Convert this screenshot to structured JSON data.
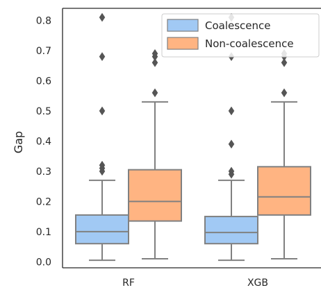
{
  "chart_data": {
    "type": "box",
    "ylabel": "Gap",
    "xlabel": "",
    "ylim": [
      -0.02,
      0.84
    ],
    "yticks": [
      0.0,
      0.1,
      0.2,
      0.3,
      0.4,
      0.5,
      0.6,
      0.7,
      0.8
    ],
    "ytick_labels": [
      "0.0",
      "0.1",
      "0.2",
      "0.3",
      "0.4",
      "0.5",
      "0.6",
      "0.7",
      "0.8"
    ],
    "categories": [
      "RF",
      "XGB"
    ],
    "legend_position": "top-right",
    "grid": false,
    "series": [
      {
        "name": "Coalescence",
        "color": "#a1c9f4",
        "boxes": [
          {
            "category": "RF",
            "whisker_low": 0.005,
            "q1": 0.06,
            "median": 0.1,
            "q3": 0.155,
            "whisker_high": 0.27,
            "outliers": [
              0.3,
              0.31,
              0.32,
              0.5,
              0.68,
              0.81
            ]
          },
          {
            "category": "XGB",
            "whisker_low": 0.005,
            "q1": 0.06,
            "median": 0.097,
            "q3": 0.15,
            "whisker_high": 0.27,
            "outliers": [
              0.29,
              0.3,
              0.39,
              0.5,
              0.68,
              0.81
            ]
          }
        ]
      },
      {
        "name": "Non-coalescence",
        "color": "#ffb482",
        "boxes": [
          {
            "category": "RF",
            "whisker_low": 0.01,
            "q1": 0.135,
            "median": 0.2,
            "q3": 0.305,
            "whisker_high": 0.53,
            "outliers": [
              0.56,
              0.66,
              0.68,
              0.69
            ]
          },
          {
            "category": "XGB",
            "whisker_low": 0.01,
            "q1": 0.155,
            "median": 0.215,
            "q3": 0.315,
            "whisker_high": 0.53,
            "outliers": [
              0.56,
              0.66,
              0.68,
              0.69
            ]
          }
        ]
      }
    ]
  }
}
